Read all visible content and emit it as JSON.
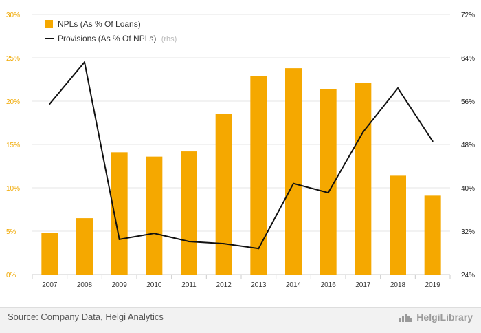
{
  "chart_data": {
    "type": "bar",
    "categories": [
      "2007",
      "2008",
      "2009",
      "2010",
      "2011",
      "2012",
      "2013",
      "2014",
      "2016",
      "2017",
      "2018",
      "2019"
    ],
    "series": [
      {
        "name": "NPLs (As % Of Loans)",
        "type": "bar",
        "axis": "left",
        "color": "#f5a800",
        "values": [
          4.8,
          6.5,
          14.1,
          13.6,
          14.2,
          18.5,
          22.9,
          23.8,
          21.4,
          22.1,
          11.4,
          9.1
        ]
      },
      {
        "name": "Provisions (As % Of NPLs)",
        "name_suffix": "(rhs)",
        "type": "line",
        "axis": "right",
        "color": "#111111",
        "values": [
          55.5,
          63.2,
          30.5,
          31.6,
          30.1,
          29.7,
          28.8,
          40.8,
          39.1,
          50.3,
          58.4,
          48.6
        ]
      }
    ],
    "y_left": {
      "min": 0,
      "max": 30,
      "ticks": [
        "0%",
        "5%",
        "10%",
        "15%",
        "20%",
        "25%",
        "30%"
      ]
    },
    "y_right": {
      "min": 24,
      "max": 72,
      "ticks": [
        "24%",
        "32%",
        "40%",
        "48%",
        "56%",
        "64%",
        "72%"
      ]
    },
    "legend_position": "top-left",
    "grid": "horizontal"
  },
  "footer": {
    "source": "Source: Company Data, Helgi Analytics",
    "brand": "HelgiLibrary"
  }
}
